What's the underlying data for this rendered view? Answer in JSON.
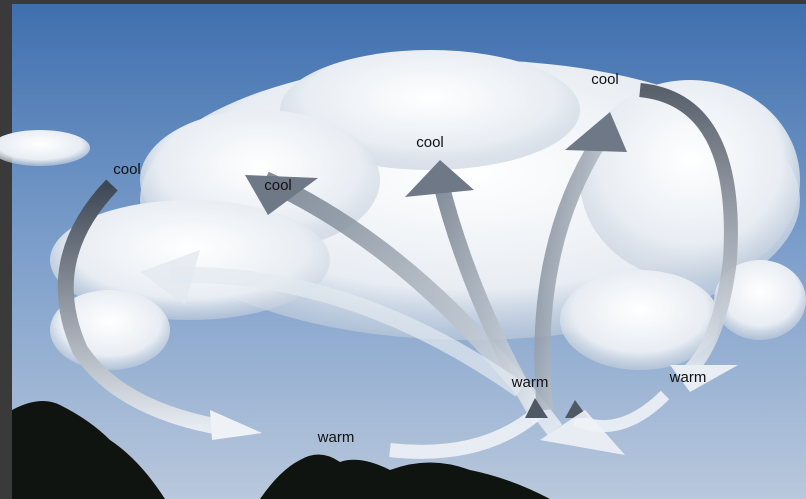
{
  "labels": [
    {
      "text": "cool"
    },
    {
      "text": "cool"
    },
    {
      "text": "cool"
    },
    {
      "text": "cool"
    },
    {
      "text": "warm"
    },
    {
      "text": "warm"
    },
    {
      "text": "warm"
    }
  ]
}
